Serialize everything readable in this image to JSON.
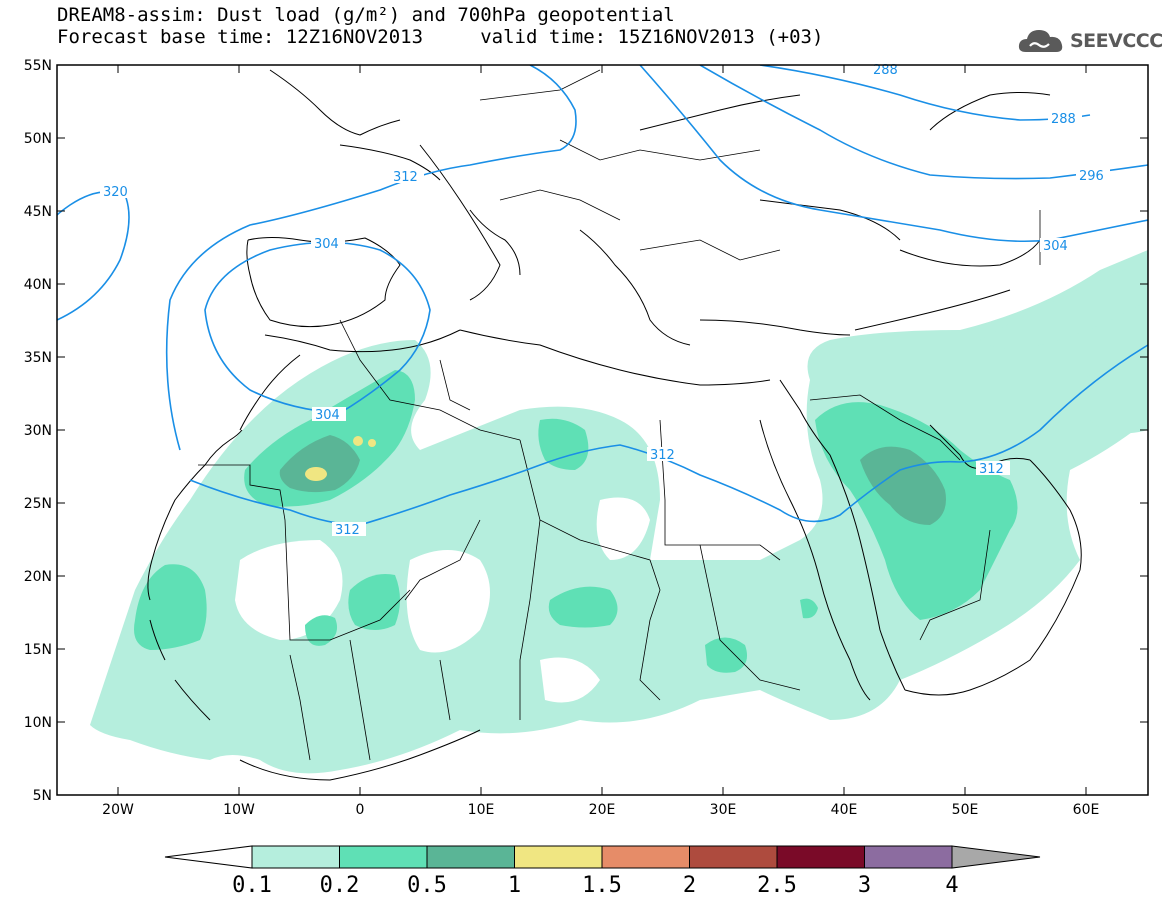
{
  "title": {
    "line1": "DREAM8-assim: Dust load (g/m²) and 700hPa geopotential",
    "line2": "Forecast base time: 12Z16NOV2013     valid time: 15Z16NOV2013 (+03)"
  },
  "logo": {
    "text": "SEEVCCC",
    "icon": "cloud-icon"
  },
  "axes": {
    "lat_labels": [
      "55N",
      "50N",
      "45N",
      "40N",
      "35N",
      "30N",
      "25N",
      "20N",
      "15N",
      "10N",
      "5N"
    ],
    "lon_labels": [
      "20W",
      "10W",
      "0",
      "10E",
      "20E",
      "30E",
      "40E",
      "50E",
      "60E"
    ]
  },
  "contours": {
    "color": "#1a8fe6",
    "labels": [
      "288",
      "288",
      "296",
      "304",
      "304",
      "312",
      "312",
      "312",
      "312",
      "320"
    ]
  },
  "colorbar": {
    "colors": [
      "#ffffff",
      "#b5eedd",
      "#5fe0b5",
      "#5ab596",
      "#f0e682",
      "#e68c68",
      "#ae4b3e",
      "#7a0a28",
      "#8c6ca0",
      "#a8a8a8"
    ],
    "tick_labels": [
      "0.1",
      "0.2",
      "0.5",
      "1",
      "1.5",
      "2",
      "2.5",
      "3",
      "4"
    ]
  }
}
